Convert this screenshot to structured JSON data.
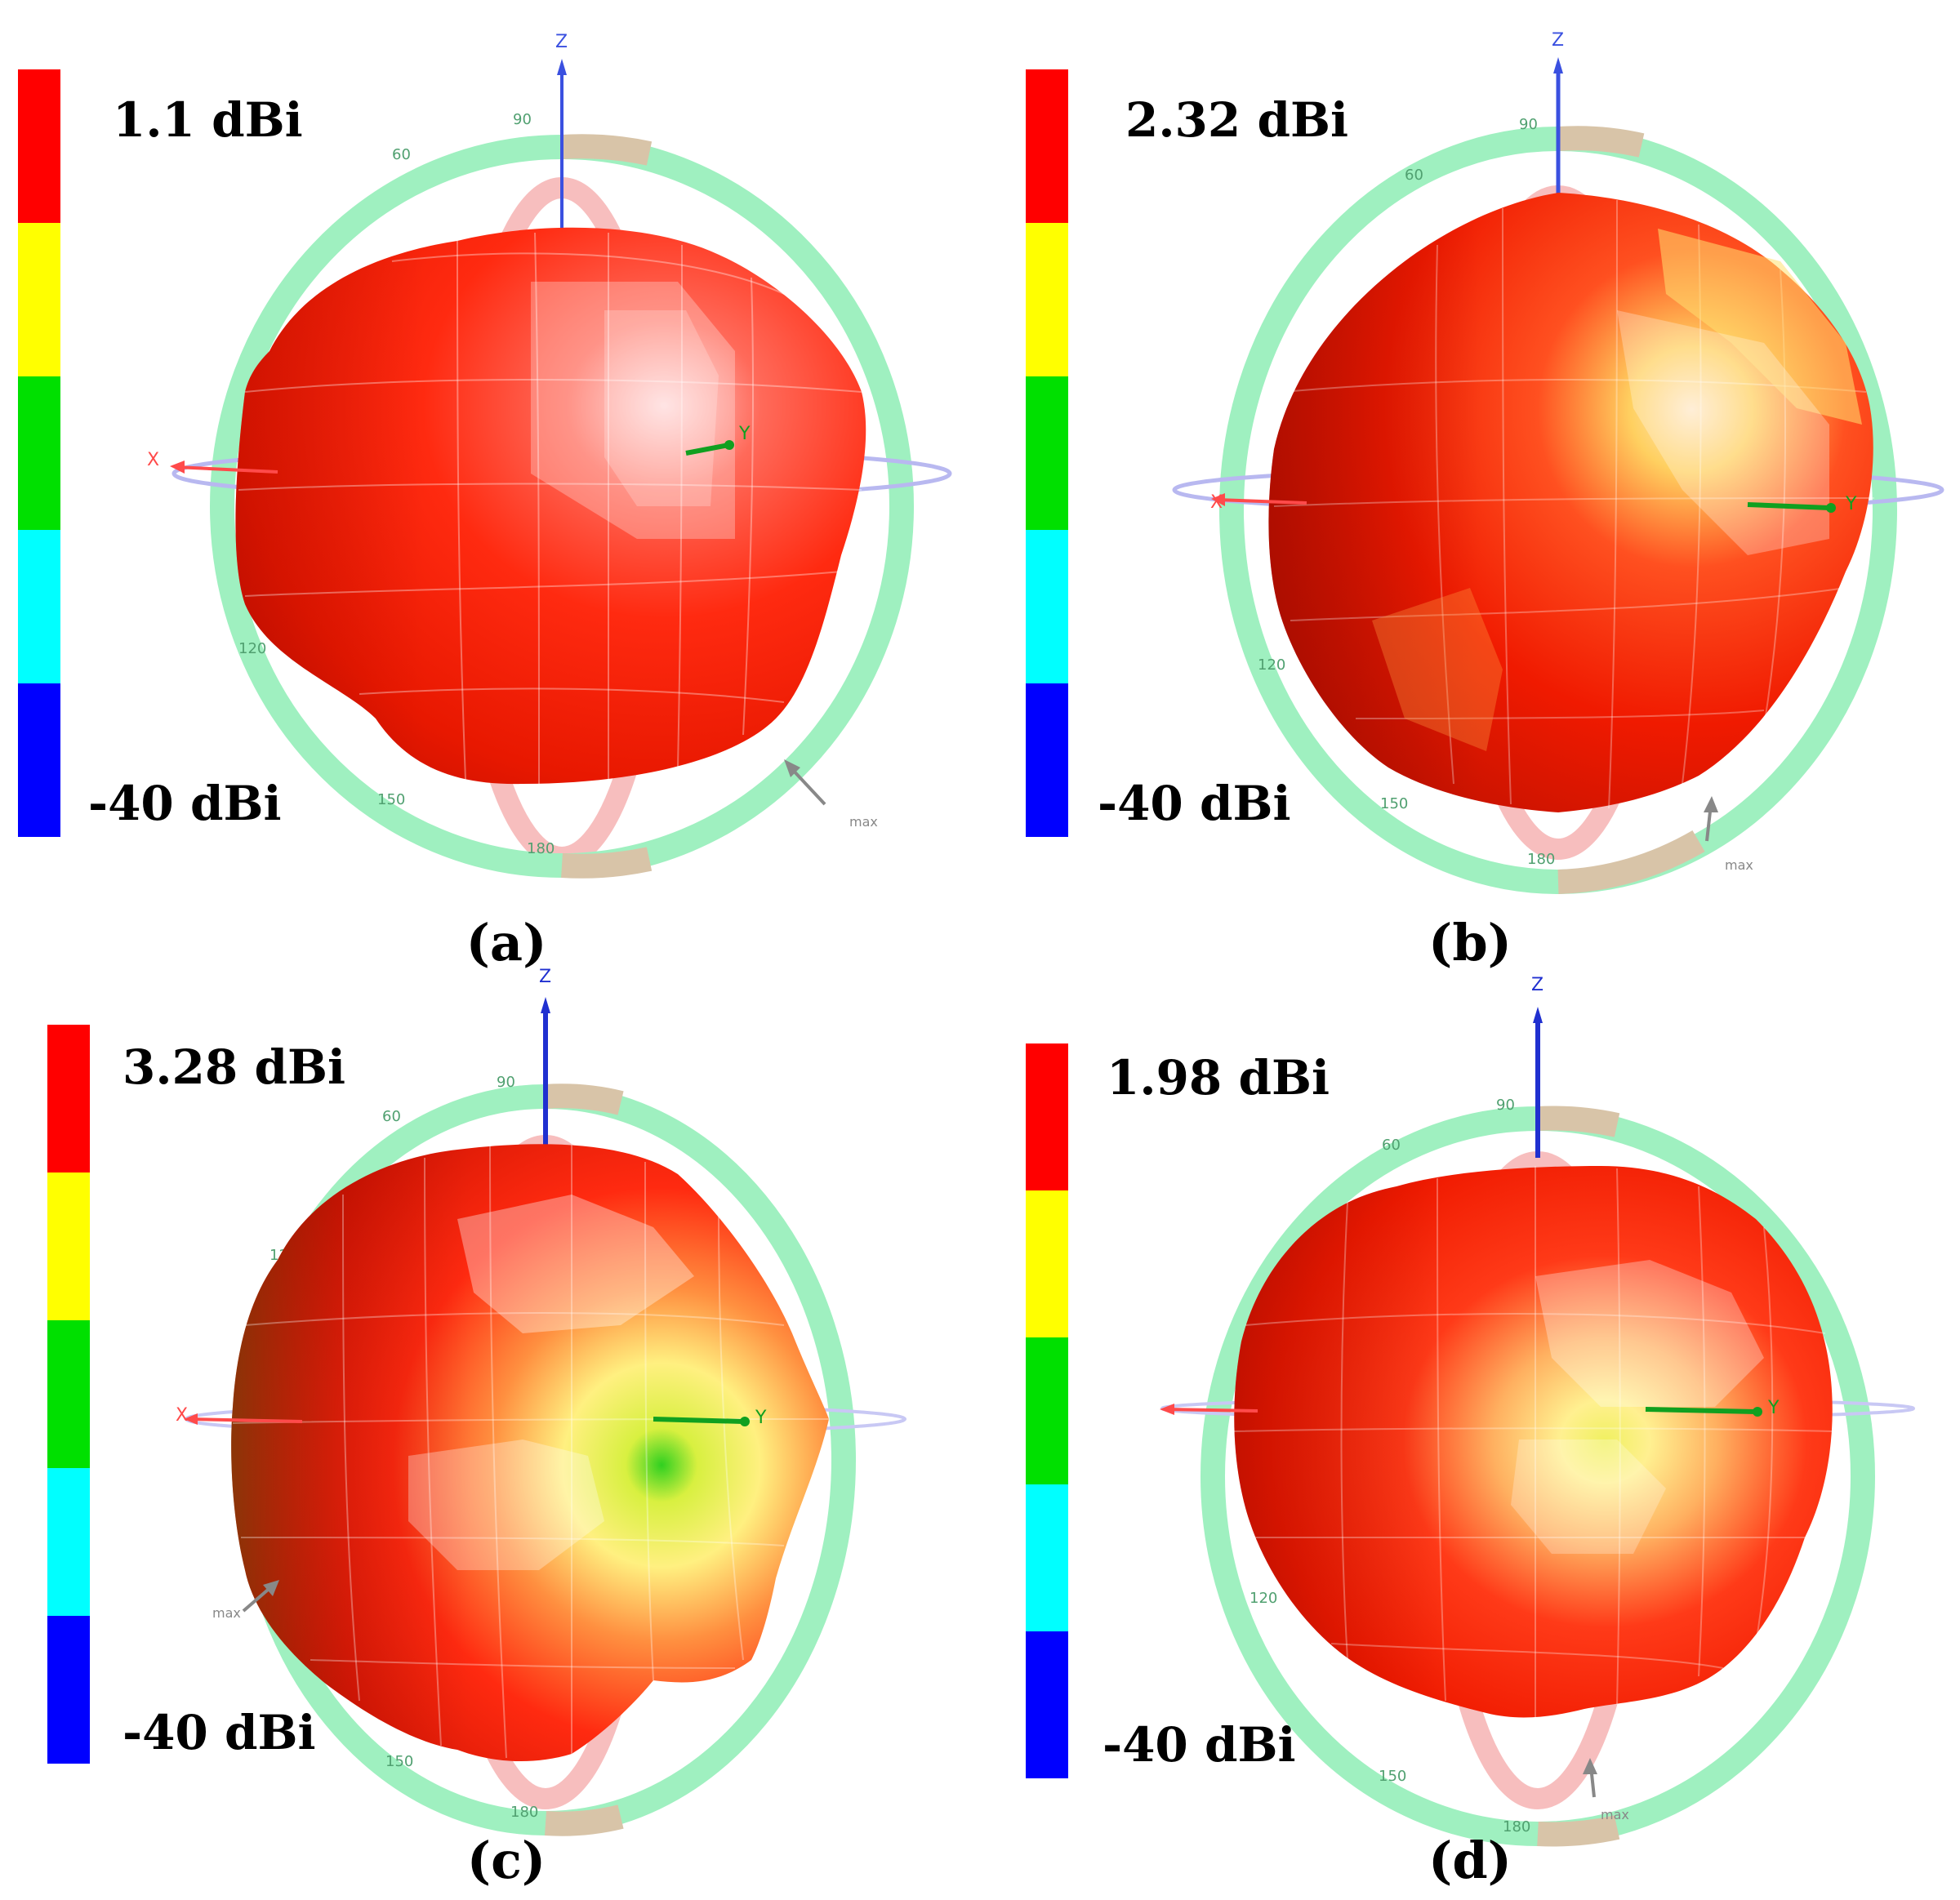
{
  "colorbar": {
    "colors": [
      "#ff0000",
      "#ffff00",
      "#00e000",
      "#00ffff",
      "#0000ff"
    ]
  },
  "panels": [
    {
      "id": "a",
      "label": "(a)",
      "max_text": "1.1 dBi",
      "min_text": "-40 dBi",
      "axis_z": "Z",
      "axis_x": "X",
      "axis_y": "Y",
      "marker": "max",
      "ring_ticks": [
        "90",
        "60",
        "120",
        "150",
        "180"
      ]
    },
    {
      "id": "b",
      "label": "(b)",
      "max_text": "2.32 dBi",
      "min_text": "-40 dBi",
      "axis_z": "Z",
      "axis_x": "X",
      "axis_y": "Y",
      "marker": "max",
      "ring_ticks": [
        "90",
        "60",
        "120",
        "150",
        "180"
      ]
    },
    {
      "id": "c",
      "label": "(c)",
      "max_text": "3.28 dBi",
      "min_text": "-40 dBi",
      "axis_z": "Z",
      "axis_x": "X",
      "axis_y": "Y",
      "marker": "max",
      "ring_ticks": [
        "90",
        "60",
        "120",
        "150",
        "180"
      ]
    },
    {
      "id": "d",
      "label": "(d)",
      "max_text": "1.98 dBi",
      "min_text": "-40 dBi",
      "axis_z": "Z",
      "axis_x": "",
      "axis_y": "Y",
      "marker": "max",
      "ring_ticks": [
        "90",
        "60",
        "120",
        "150",
        "180"
      ]
    }
  ]
}
